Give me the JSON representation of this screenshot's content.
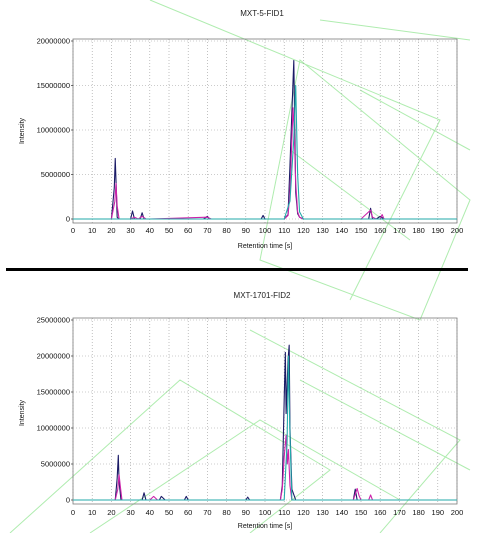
{
  "chart_data": [
    {
      "type": "line",
      "title": "MXT-5-FID1",
      "xlabel": "Retention time [s]",
      "ylabel": "Intensity",
      "xlim": [
        0,
        200
      ],
      "ylim": [
        0,
        20000000
      ],
      "x_ticks": [
        0,
        10,
        20,
        30,
        40,
        50,
        60,
        70,
        80,
        90,
        100,
        110,
        120,
        130,
        140,
        150,
        160,
        170,
        180,
        190,
        200
      ],
      "y_ticks": [
        0,
        5000000,
        10000000,
        15000000,
        20000000
      ],
      "grid": true,
      "series": [
        {
          "color": "#1a1a66",
          "x": [
            0,
            20,
            21.5,
            22,
            22.6,
            23,
            24,
            30,
            31,
            32,
            35,
            36,
            37,
            40,
            68,
            70,
            71,
            72,
            98,
            99,
            100,
            101,
            110,
            112,
            113,
            114,
            115,
            115.6,
            116,
            117,
            118,
            120,
            154,
            155,
            156,
            158,
            160,
            162,
            200
          ],
          "y": [
            0,
            0,
            3500000,
            6800000,
            3000000,
            200000,
            0,
            0,
            900000,
            0,
            0,
            700000,
            0,
            0,
            0,
            300000,
            0,
            0,
            0,
            400000,
            0,
            0,
            0,
            500000,
            6000000,
            12000000,
            17800000,
            9000000,
            3000000,
            600000,
            200000,
            0,
            0,
            1200000,
            0,
            0,
            300000,
            0,
            0
          ]
        },
        {
          "color": "#cc22aa",
          "x": [
            0,
            20,
            21.8,
            22.4,
            23,
            24,
            30,
            32,
            34,
            36,
            38,
            40,
            70,
            72,
            100,
            110,
            112,
            113,
            114,
            114.6,
            115.2,
            116,
            117,
            118,
            120,
            125,
            150,
            154,
            155,
            156,
            158,
            160,
            161,
            162,
            200
          ],
          "y": [
            0,
            0,
            2000000,
            4000000,
            1500000,
            0,
            0,
            200000,
            0,
            300000,
            0,
            0,
            200000,
            0,
            0,
            0,
            400000,
            3000000,
            9000000,
            12500000,
            10000000,
            4000000,
            800000,
            200000,
            0,
            0,
            0,
            800000,
            1000000,
            200000,
            0,
            0,
            500000,
            0,
            0
          ]
        },
        {
          "color": "#22aaaa",
          "x": [
            0,
            110,
            113,
            115,
            116,
            116.4,
            117,
            118,
            120,
            200
          ],
          "y": [
            0,
            0,
            2000000,
            9000000,
            15000000,
            11000000,
            5000000,
            800000,
            0,
            0
          ]
        }
      ]
    },
    {
      "type": "line",
      "title": "MXT-1701-FID2",
      "xlabel": "Retention time [s]",
      "ylabel": "Intensity",
      "xlim": [
        0,
        200
      ],
      "ylim": [
        0,
        25000000
      ],
      "x_ticks": [
        0,
        10,
        20,
        30,
        40,
        50,
        60,
        70,
        80,
        90,
        100,
        110,
        120,
        130,
        140,
        150,
        160,
        170,
        180,
        190,
        200
      ],
      "y_ticks": [
        0,
        5000000,
        10000000,
        15000000,
        20000000,
        25000000
      ],
      "grid": true,
      "series": [
        {
          "color": "#1a1a66",
          "x": [
            0,
            22,
            23,
            23.6,
            24,
            25,
            36,
            37,
            38,
            40,
            45,
            46,
            48,
            58,
            59,
            60,
            90,
            91,
            92,
            108,
            109,
            110,
            110.6,
            111,
            112,
            112.6,
            113,
            114,
            116,
            146,
            147,
            148,
            150,
            200
          ],
          "y": [
            0,
            0,
            3000000,
            6200000,
            2500000,
            0,
            0,
            1000000,
            0,
            0,
            0,
            500000,
            0,
            0,
            500000,
            0,
            0,
            400000,
            0,
            0,
            2000000,
            14000000,
            20500000,
            12000000,
            19500000,
            21500000,
            10000000,
            1500000,
            0,
            0,
            1500000,
            0,
            0,
            0
          ]
        },
        {
          "color": "#cc22aa",
          "x": [
            0,
            22,
            23.3,
            24,
            24.6,
            25.5,
            40,
            42,
            44,
            100,
            108,
            109,
            110,
            111,
            111.6,
            112.2,
            113,
            114,
            146,
            147,
            148,
            149,
            150,
            154,
            155,
            156,
            158,
            200
          ],
          "y": [
            0,
            0,
            1500000,
            3500000,
            2000000,
            0,
            0,
            500000,
            0,
            0,
            0,
            1500000,
            6000000,
            9000000,
            5000000,
            7000000,
            2000000,
            0,
            0,
            800000,
            1600000,
            600000,
            0,
            0,
            700000,
            0,
            0,
            0
          ]
        },
        {
          "color": "#22aaaa",
          "x": [
            0,
            110,
            111.5,
            112.2,
            113,
            114,
            200
          ],
          "y": [
            0,
            0,
            8000000,
            20000000,
            9000000,
            0,
            0
          ]
        }
      ]
    }
  ]
}
